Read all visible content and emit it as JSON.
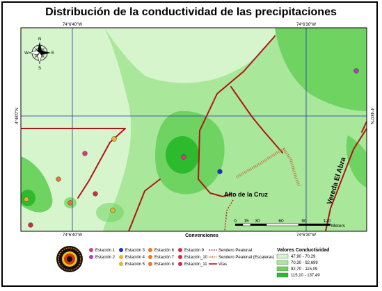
{
  "title": "Distribución de la conductividad de las precipitaciones",
  "coords": {
    "top_left": "74°6'40\"W",
    "top_right": "74°6'30\"W",
    "bottom_left": "74°6'40\"W",
    "bottom_right": "74°6'30\"W",
    "left_lat": "4°48'0\"N",
    "right_lat": "4°48'0\"N"
  },
  "compass": {
    "n": "N",
    "s": "S",
    "e": "E",
    "w": "W"
  },
  "road_labels": {
    "alto": "Alto de la Cruz",
    "vereda": "Vereda El Abra"
  },
  "scale_bar": {
    "ticks": [
      "0",
      "15",
      "30",
      "60",
      "90",
      "120"
    ],
    "unit": "Meters",
    "caption": "Convenciones"
  },
  "legend": {
    "stations": [
      {
        "label": "Estación 1",
        "color": "#d93a7a"
      },
      {
        "label": "Estación 2",
        "color": "#b03cc0"
      },
      {
        "label": "Estación 3",
        "color": "#1a2fc8"
      },
      {
        "label": "Estación 4",
        "color": "#e8b52a"
      },
      {
        "label": "Estación 5",
        "color": "#e8b52a"
      },
      {
        "label": "Estación 6",
        "color": "#e8772a"
      },
      {
        "label": "Estación 7",
        "color": "#e8772a"
      },
      {
        "label": "Estación 8",
        "color": "#e8772a"
      },
      {
        "label": "Estación 9",
        "color": "#d12c45"
      },
      {
        "label": "Estación_10",
        "color": "#d12c45"
      },
      {
        "label": "Estación_11",
        "color": "#d12c45"
      }
    ],
    "lines": [
      {
        "label": "Sendero Peatonal"
      },
      {
        "label": "Sendero Peatonal (Escaleras)"
      },
      {
        "label": "Vías"
      }
    ],
    "classes_title": "Valores Conductividad",
    "classes": [
      {
        "label": "47,90 - 70,29",
        "color": "#d6f5cc"
      },
      {
        "label": "70,30 - 92,699",
        "color": "#a9e79a"
      },
      {
        "label": "92,70 - 115,09",
        "color": "#6fd362"
      },
      {
        "label": "115,10 - 137,49",
        "color": "#2dbb2d"
      }
    ]
  },
  "colors": {
    "class1": "#d6f5cc",
    "class2": "#a9e79a",
    "class3": "#6fd362",
    "class4": "#2dbb2d",
    "road": "#b01515",
    "grid": "#2233aa"
  }
}
